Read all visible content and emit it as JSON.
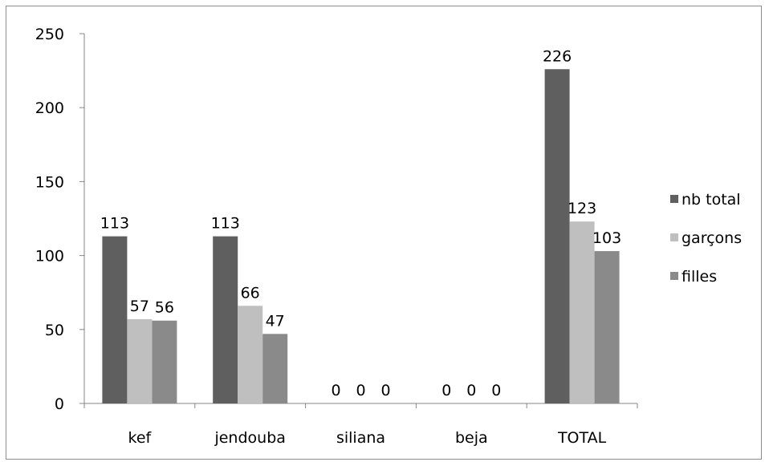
{
  "chart_data": {
    "type": "bar",
    "categories": [
      "kef",
      "jendouba",
      "siliana",
      "beja",
      "TOTAL"
    ],
    "series": [
      {
        "name": "nb total",
        "values": [
          113,
          113,
          0,
          0,
          226
        ],
        "color": "#5f5f5f"
      },
      {
        "name": "garçons",
        "values": [
          57,
          66,
          0,
          0,
          123
        ],
        "color": "#bfbfbf"
      },
      {
        "name": "filles",
        "values": [
          56,
          47,
          0,
          0,
          103
        ],
        "color": "#8a8a8a"
      }
    ],
    "ylim": [
      0,
      250
    ],
    "yticks": [
      0,
      50,
      100,
      150,
      200,
      250
    ],
    "grid": false,
    "legend": "right",
    "data_labels": true
  }
}
